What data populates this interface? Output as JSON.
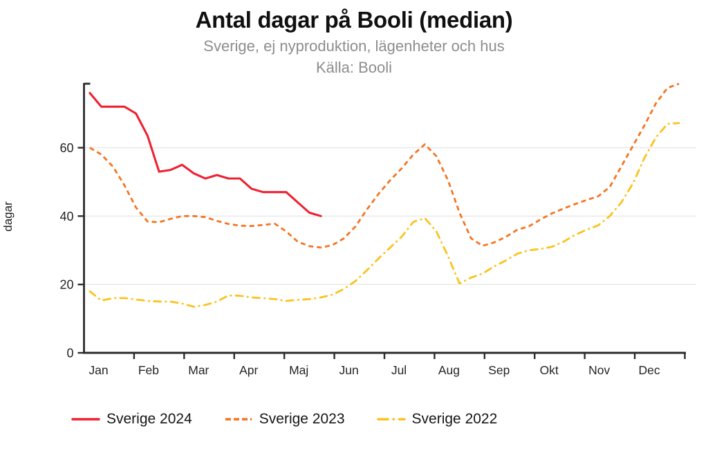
{
  "chart_data": {
    "type": "line",
    "title": "Antal dagar på Booli (median)",
    "subtitle": "Sverige, ej nyproduktion, lägenheter och hus",
    "source": "Källa: Booli",
    "ylabel": "dagar",
    "ylim": [
      0,
      80
    ],
    "yticks": [
      0,
      20,
      40,
      60
    ],
    "grid": "horizontal",
    "legend_position": "bottom",
    "x_unit": "week-of-year (52 weekly points, Jan–Dec)",
    "months": [
      "Jan",
      "Feb",
      "Mar",
      "Apr",
      "Maj",
      "Jun",
      "Jul",
      "Aug",
      "Sep",
      "Okt",
      "Nov",
      "Dec"
    ],
    "axis_color": "#2b2b2b",
    "grid_color": "#e9e9e9",
    "series": [
      {
        "name": "Sverige 2024",
        "color": "#ee2130",
        "style": "solid",
        "values": [
          76,
          72,
          72,
          72,
          70,
          63.5,
          53,
          53.5,
          55,
          52.5,
          51,
          52,
          51,
          51,
          48,
          47,
          47,
          47,
          44,
          41,
          40
        ]
      },
      {
        "name": "Sverige 2023",
        "color": "#f57420",
        "style": "dashed",
        "values": [
          60,
          58,
          54.5,
          49,
          42.5,
          38.4,
          38.2,
          39.2,
          40,
          40,
          39.7,
          38.6,
          37.7,
          37.2,
          37.1,
          37.4,
          37.8,
          35.5,
          32.5,
          31.2,
          30.8,
          31.5,
          33.5,
          37,
          42,
          46.5,
          50.5,
          54,
          58,
          61,
          57.5,
          50.5,
          41,
          33.5,
          31.3,
          32.3,
          33.9,
          36,
          37,
          39,
          40.8,
          42.2,
          43.5,
          44.7,
          45.8,
          48.5,
          54.5,
          60.5,
          66.5,
          73,
          77.5,
          78.7
        ]
      },
      {
        "name": "Sverige 2022",
        "color": "#fbc21d",
        "style": "dashdot",
        "values": [
          18,
          15.3,
          16,
          16,
          15.6,
          15.2,
          15,
          15,
          14.4,
          13.5,
          14,
          15,
          16.8,
          16.7,
          16.2,
          16,
          15.7,
          15.2,
          15.5,
          15.7,
          16.2,
          17,
          18.7,
          21,
          24.2,
          27.6,
          30.8,
          34,
          38.3,
          39.4,
          35.5,
          28.3,
          20.3,
          22,
          23.2,
          25.3,
          27,
          29,
          30,
          30.4,
          31,
          32.5,
          34.5,
          36,
          37.3,
          40,
          44,
          49.5,
          57,
          63,
          67,
          67.2
        ]
      }
    ]
  }
}
